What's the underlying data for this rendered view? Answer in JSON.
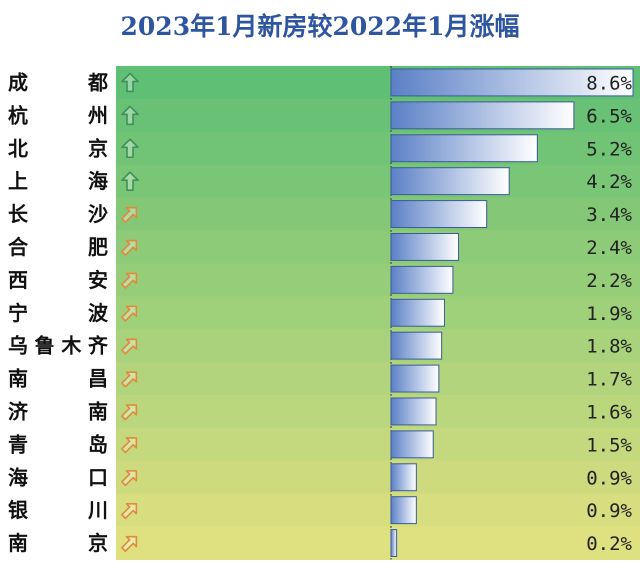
{
  "chart_data": {
    "type": "bar",
    "title": "2023年1月新房较2022年1月涨幅",
    "categories": [
      "成　　都",
      "杭　　州",
      "北　　京",
      "上　　海",
      "长　　沙",
      "合　　肥",
      "西　　安",
      "宁　　波",
      "乌鲁木齐",
      "南　　昌",
      "济　　南",
      "青　　岛",
      "海　　口",
      "银　　川",
      "南　　京"
    ],
    "values": [
      8.6,
      6.5,
      5.2,
      4.2,
      3.4,
      2.4,
      2.2,
      1.9,
      1.8,
      1.7,
      1.6,
      1.5,
      0.9,
      0.9,
      0.2
    ],
    "value_labels": [
      "8.6%",
      "6.5%",
      "5.2%",
      "4.2%",
      "3.4%",
      "2.4%",
      "2.2%",
      "1.9%",
      "1.8%",
      "1.7%",
      "1.6%",
      "1.5%",
      "0.9%",
      "0.9%",
      "0.2%"
    ],
    "trend_icons": [
      "arrow-up-icon",
      "arrow-up-icon",
      "arrow-up-icon",
      "arrow-up-icon",
      "arrow-up-right-icon",
      "arrow-up-right-icon",
      "arrow-up-right-icon",
      "arrow-up-right-icon",
      "arrow-up-right-icon",
      "arrow-up-right-icon",
      "arrow-up-right-icon",
      "arrow-up-right-icon",
      "arrow-up-right-icon",
      "arrow-up-right-icon",
      "arrow-up-right-icon"
    ],
    "ylim": [
      0,
      8.6
    ],
    "xlabel": "",
    "ylabel": "",
    "grid": false,
    "colors": {
      "title": "#2e55a0",
      "row_top": "#5fbf74",
      "row_bottom": "#dfe080",
      "bar_dark": "#5b80c6",
      "bar_light": "#ffffff",
      "bar_border": "#3a5a9c",
      "arrow_up": "#3f8f5a",
      "arrow_diag": "#e08a3a"
    }
  }
}
